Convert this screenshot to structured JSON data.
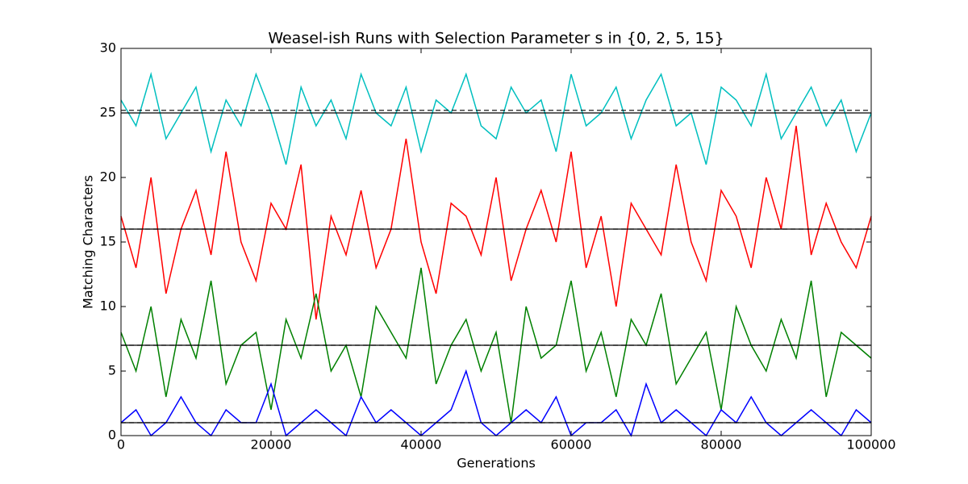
{
  "chart_data": {
    "type": "line",
    "title": "Weasel-ish Runs with Selection Parameter s in {0, 2, 5, 15}",
    "x_label": "Generations",
    "y_label": "Matching Characters",
    "xlim": [
      0,
      100000
    ],
    "xticks": [
      0,
      20000,
      40000,
      60000,
      80000,
      100000
    ],
    "ylim": [
      0,
      30
    ],
    "yticks": [
      0,
      5,
      10,
      15,
      20,
      25,
      30
    ],
    "grid": false,
    "x": [
      0,
      2000,
      4000,
      6000,
      8000,
      10000,
      12000,
      14000,
      16000,
      18000,
      20000,
      22000,
      24000,
      26000,
      28000,
      30000,
      32000,
      34000,
      36000,
      38000,
      40000,
      42000,
      44000,
      46000,
      48000,
      50000,
      52000,
      54000,
      56000,
      58000,
      60000,
      62000,
      64000,
      66000,
      68000,
      70000,
      72000,
      74000,
      76000,
      78000,
      80000,
      82000,
      84000,
      86000,
      88000,
      90000,
      92000,
      94000,
      96000,
      98000,
      100000
    ],
    "series": [
      {
        "color": "#00bfbf",
        "values": [
          26,
          24,
          28,
          23,
          25,
          27,
          22,
          26,
          24,
          28,
          25,
          21,
          27,
          24,
          26,
          23,
          28,
          25,
          24,
          27,
          22,
          26,
          25,
          28,
          24,
          23,
          27,
          25,
          26,
          22,
          28,
          24,
          25,
          27,
          23,
          26,
          28,
          24,
          25,
          21,
          27,
          26,
          24,
          28,
          23,
          25,
          27,
          24,
          26,
          22,
          25
        ]
      },
      {
        "color": "#ff0000",
        "values": [
          17,
          13,
          20,
          11,
          16,
          19,
          14,
          22,
          15,
          12,
          18,
          16,
          21,
          9,
          17,
          14,
          19,
          13,
          16,
          23,
          15,
          11,
          18,
          17,
          14,
          20,
          12,
          16,
          19,
          15,
          22,
          13,
          17,
          10,
          18,
          16,
          14,
          21,
          15,
          12,
          19,
          17,
          13,
          20,
          16,
          24,
          14,
          18,
          15,
          13,
          17
        ]
      },
      {
        "color": "#008000",
        "values": [
          8,
          5,
          10,
          3,
          9,
          6,
          12,
          4,
          7,
          8,
          2,
          9,
          6,
          11,
          5,
          7,
          3,
          10,
          8,
          6,
          13,
          4,
          7,
          9,
          5,
          8,
          1,
          10,
          6,
          7,
          12,
          5,
          8,
          3,
          9,
          7,
          11,
          4,
          6,
          8,
          2,
          10,
          7,
          5,
          9,
          6,
          12,
          3,
          8,
          7,
          6
        ]
      },
      {
        "color": "#0000ff",
        "values": [
          1,
          2,
          0,
          1,
          3,
          1,
          0,
          2,
          1,
          1,
          4,
          0,
          1,
          2,
          1,
          0,
          3,
          1,
          2,
          1,
          0,
          1,
          2,
          5,
          1,
          0,
          1,
          2,
          1,
          3,
          0,
          1,
          1,
          2,
          0,
          4,
          1,
          2,
          1,
          0,
          2,
          1,
          3,
          1,
          0,
          1,
          2,
          1,
          0,
          2,
          1
        ]
      }
    ],
    "hlines": [
      {
        "y": 25.2,
        "linestyle": "dashed",
        "color": "#000000"
      },
      {
        "y": 25,
        "linestyle": "solid",
        "color": "#000000"
      },
      {
        "y": 16,
        "linestyle": "dashed",
        "color": "#000000"
      },
      {
        "y": 16,
        "linestyle": "solid",
        "color": "#000000"
      },
      {
        "y": 7,
        "linestyle": "dashed",
        "color": "#000000"
      },
      {
        "y": 7,
        "linestyle": "solid",
        "color": "#000000"
      },
      {
        "y": 1,
        "linestyle": "dashed",
        "color": "#000000"
      },
      {
        "y": 1,
        "linestyle": "solid",
        "color": "#000000"
      }
    ]
  }
}
